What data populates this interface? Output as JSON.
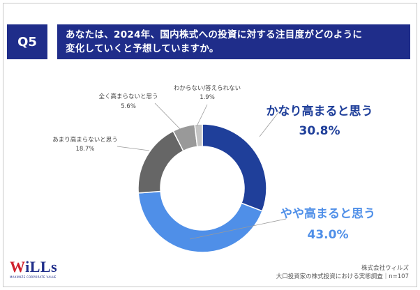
{
  "question": {
    "badge": "Q5",
    "text_line1": "あなたは、2024年、国内株式への投資に対する注目度がどのように",
    "text_line2": "変化していくと予想していますか。"
  },
  "chart_data": {
    "type": "pie",
    "donut": true,
    "slices": [
      {
        "label": "かなり高まると思う",
        "value": 30.8,
        "value_text": "30.8%",
        "color": "#1f3f9a"
      },
      {
        "label": "やや高まると思う",
        "value": 43.0,
        "value_text": "43.0%",
        "color": "#4f8fe8"
      },
      {
        "label": "あまり高まらないと思う",
        "value": 18.7,
        "value_text": "18.7%",
        "color": "#666666"
      },
      {
        "label": "全く高まらないと思う",
        "value": 5.6,
        "value_text": "5.6%",
        "color": "#999999"
      },
      {
        "label": "わからない/答えられない",
        "value": 1.9,
        "value_text": "1.9%",
        "color": "#c4c4c4"
      }
    ]
  },
  "footer": {
    "company": "株式会社ウィルズ",
    "survey": "大口投資家の株式投資における実態調査｜n=107"
  },
  "logo": {
    "text_w": "W",
    "text_rest": "iLLs",
    "tagline": "MAXIMIZE CORPORATE VALUE"
  }
}
